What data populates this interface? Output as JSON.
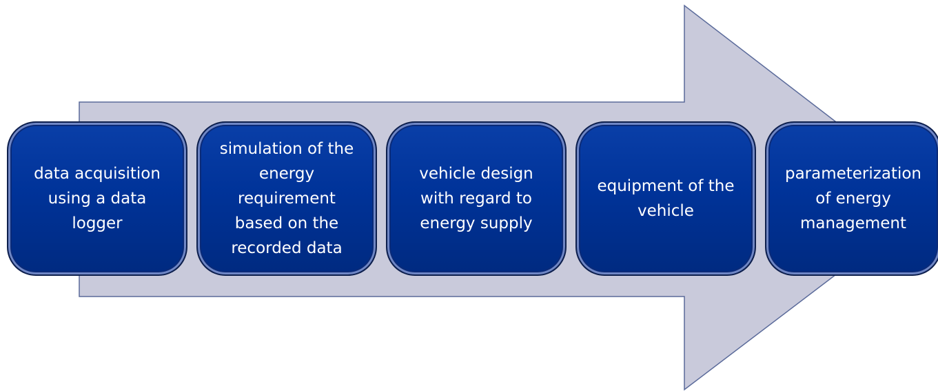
{
  "steps": [
    {
      "lines": [
        "data acquisition",
        "using a data",
        "logger"
      ]
    },
    {
      "lines": [
        "simulation of the",
        "energy",
        "requirement",
        "based on the",
        "recorded data"
      ]
    },
    {
      "lines": [
        "vehicle design",
        "with regard to",
        "energy supply"
      ]
    },
    {
      "lines": [
        "equipment of the",
        "vehicle"
      ]
    },
    {
      "lines": [
        "parameterization",
        "of energy",
        "management"
      ]
    }
  ]
}
